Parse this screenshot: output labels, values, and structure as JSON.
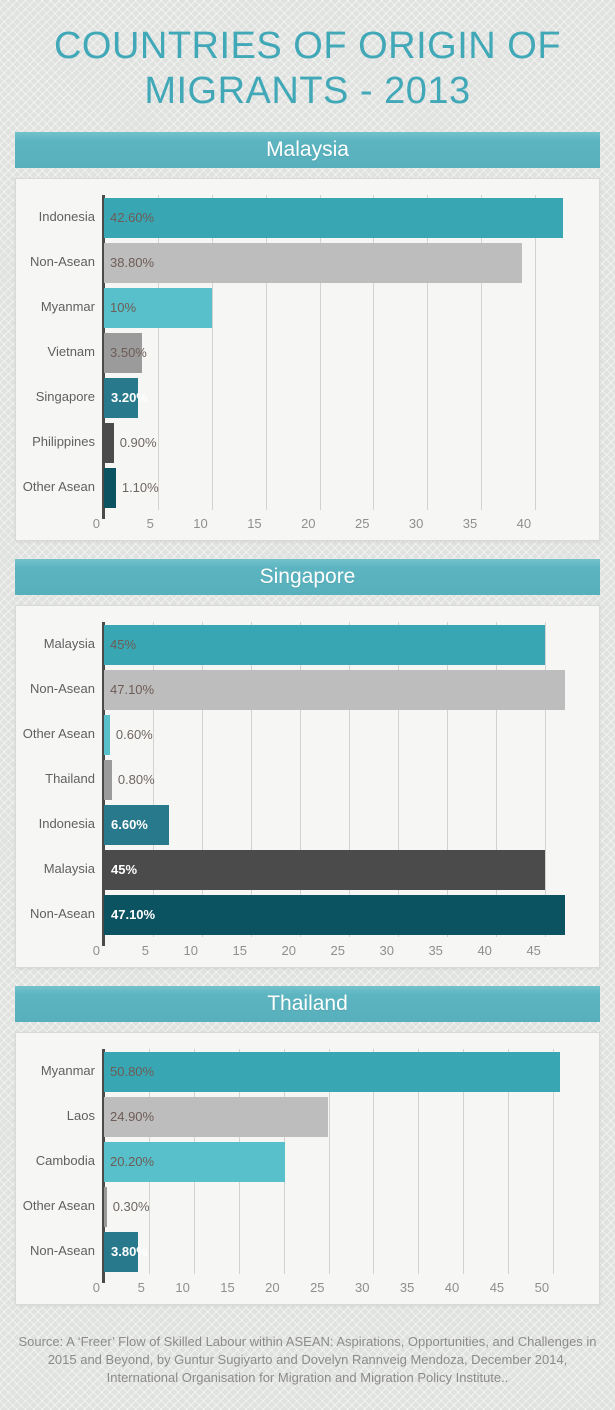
{
  "page": {
    "title": "COUNTRIES OF ORIGIN OF MIGRANTS - 2013",
    "source": "Source: A ‘Freer’ Flow of Skilled Labour within ASEAN: Aspirations, Opportunities, and Challenges in 2015 and Beyond, by Guntur Sugiyarto and Dovelyn Rannveig Mendoza, December 2014, International Organisation for Migration and Migration Policy Institute.."
  },
  "palette": {
    "title_teal": "#41a8b8",
    "header_band_teal": "#5cb4c0",
    "panel_bg": "#f6f6f5",
    "gridline": "#d2d2d1",
    "axis_line": "#4b4b4b",
    "bar_teal": "#38a7b3",
    "bar_silver": "#bdbdbd",
    "bar_light_teal": "#58c0ca",
    "bar_mid_gray": "#9b9b9b",
    "bar_dark_teal": "#28798b",
    "bar_dark_gray": "#4b4b4b",
    "bar_darkest_teal": "#0c5362"
  },
  "chart_data": [
    {
      "type": "bar",
      "orientation": "horizontal",
      "title": "Malaysia",
      "unit": "%",
      "grid": true,
      "legend": false,
      "categories": [
        "Indonesia",
        "Non-Asean",
        "Myanmar",
        "Vietnam",
        "Singapore",
        "Philippines",
        "Other Asean"
      ],
      "values": [
        42.6,
        38.8,
        10,
        3.5,
        3.2,
        0.9,
        1.1
      ],
      "value_labels": [
        "42.60%",
        "38.80%",
        "10%",
        "3.50%",
        "3.20%",
        "0.90%",
        "1.10%"
      ],
      "bar_colors": [
        "#38a7b3",
        "#bdbdbd",
        "#58c0ca",
        "#9b9b9b",
        "#28798b",
        "#4b4b4b",
        "#0c5362"
      ],
      "label_style": [
        "inside-dark",
        "inside-dark",
        "inside-dark",
        "inside-dark",
        "inside-white",
        "outside",
        "outside"
      ],
      "ticks": [
        0,
        5,
        10,
        15,
        20,
        25,
        30,
        35,
        40
      ],
      "xlim": [
        0,
        45
      ]
    },
    {
      "type": "bar",
      "orientation": "horizontal",
      "title": "Singapore",
      "unit": "%",
      "grid": true,
      "legend": false,
      "categories": [
        "Malaysia",
        "Non-Asean",
        "Other Asean",
        "Thailand",
        "Indonesia",
        "Malaysia",
        "Non-Asean"
      ],
      "values": [
        45,
        47.1,
        0.6,
        0.8,
        6.6,
        45,
        47.1
      ],
      "value_labels": [
        "45%",
        "47.10%",
        "0.60%",
        "0.80%",
        "6.60%",
        "45%",
        "47.10%"
      ],
      "bar_colors": [
        "#38a7b3",
        "#bdbdbd",
        "#58c0ca",
        "#9b9b9b",
        "#28798b",
        "#4b4b4b",
        "#0c5362"
      ],
      "label_style": [
        "inside-dark",
        "inside-dark",
        "outside",
        "outside",
        "inside-white",
        "inside-white",
        "inside-white"
      ],
      "ticks": [
        0,
        5,
        10,
        15,
        20,
        25,
        30,
        35,
        40,
        45
      ],
      "xlim": [
        0,
        49.5
      ]
    },
    {
      "type": "bar",
      "orientation": "horizontal",
      "title": "Thailand",
      "unit": "%",
      "grid": true,
      "legend": false,
      "categories": [
        "Myanmar",
        "Laos",
        "Cambodia",
        "Other Asean",
        "Non-Asean"
      ],
      "values": [
        50.8,
        24.9,
        20.2,
        0.3,
        3.8
      ],
      "value_labels": [
        "50.80%",
        "24.90%",
        "20.20%",
        "0.30%",
        "3.80%"
      ],
      "bar_colors": [
        "#38a7b3",
        "#bdbdbd",
        "#58c0ca",
        "#9b9b9b",
        "#28798b"
      ],
      "label_style": [
        "inside-dark",
        "inside-dark",
        "inside-dark",
        "outside",
        "inside-white"
      ],
      "ticks": [
        0,
        5,
        10,
        15,
        20,
        25,
        30,
        35,
        40,
        45,
        50
      ],
      "xlim": [
        0,
        54
      ]
    }
  ]
}
